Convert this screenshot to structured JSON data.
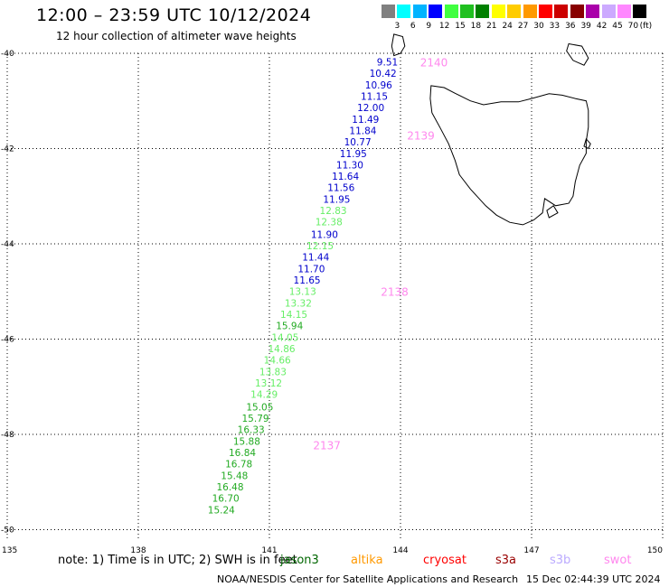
{
  "header": {
    "title": "12:00 – 23:59 UTC 10/12/2024",
    "subtitle": "12 hour collection of altimeter wave heights"
  },
  "legend": {
    "unit": "(ft)",
    "colors": [
      "#808080",
      "#00ffff",
      "#00b4ff",
      "#0000ff",
      "#40ff40",
      "#20c020",
      "#008000",
      "#ffff00",
      "#ffcc00",
      "#ff9900",
      "#ff0000",
      "#cc0000",
      "#880000",
      "#aa00aa",
      "#ccaaff",
      "#ff88ff",
      "#000000"
    ],
    "labels": [
      "3",
      "6",
      "9",
      "12",
      "15",
      "18",
      "21",
      "24",
      "27",
      "30",
      "33",
      "36",
      "39",
      "42",
      "45",
      "70"
    ]
  },
  "axes": {
    "lat_labels": [
      "-40",
      "-42",
      "-44",
      "-46",
      "-48",
      "-50"
    ],
    "lon_labels": [
      "135",
      "138",
      "141",
      "144",
      "147",
      "150"
    ],
    "lat_values": [
      -40,
      -42,
      -44,
      -46,
      -48,
      -50
    ],
    "lon_values": [
      135,
      138,
      141,
      144,
      147,
      150
    ],
    "lat_range": [
      -50.2,
      -40
    ],
    "lon_range": [
      135,
      150
    ]
  },
  "track": {
    "points": [
      {
        "lat": -40.18,
        "lon": 143.7,
        "value": "9.51",
        "color": "#0000cc"
      },
      {
        "lat": -40.42,
        "lon": 143.6,
        "value": "10.42",
        "color": "#0000cc"
      },
      {
        "lat": -40.66,
        "lon": 143.5,
        "value": "10.96",
        "color": "#0000cc"
      },
      {
        "lat": -40.9,
        "lon": 143.4,
        "value": "11.15",
        "color": "#0000cc"
      },
      {
        "lat": -41.14,
        "lon": 143.32,
        "value": "12.00",
        "color": "#0000cc"
      },
      {
        "lat": -41.38,
        "lon": 143.2,
        "value": "11.49",
        "color": "#0000cc"
      },
      {
        "lat": -41.62,
        "lon": 143.14,
        "value": "11.84",
        "color": "#0000cc"
      },
      {
        "lat": -41.86,
        "lon": 143.02,
        "value": "10.77",
        "color": "#0000cc"
      },
      {
        "lat": -42.1,
        "lon": 142.92,
        "value": "11.95",
        "color": "#0000cc"
      },
      {
        "lat": -42.34,
        "lon": 142.84,
        "value": "11.30",
        "color": "#0000cc"
      },
      {
        "lat": -42.58,
        "lon": 142.74,
        "value": "11.64",
        "color": "#0000cc"
      },
      {
        "lat": -42.82,
        "lon": 142.64,
        "value": "11.56",
        "color": "#0000cc"
      },
      {
        "lat": -43.06,
        "lon": 142.54,
        "value": "11.95",
        "color": "#0000cc"
      },
      {
        "lat": -43.3,
        "lon": 142.46,
        "value": "12.83",
        "color": "#66ee66"
      },
      {
        "lat": -43.54,
        "lon": 142.36,
        "value": "12.38",
        "color": "#66ee66"
      },
      {
        "lat": -43.8,
        "lon": 142.26,
        "value": "11.90",
        "color": "#0000cc"
      },
      {
        "lat": -44.04,
        "lon": 142.16,
        "value": "12.15",
        "color": "#66ee66"
      },
      {
        "lat": -44.28,
        "lon": 142.06,
        "value": "11.44",
        "color": "#0000cc"
      },
      {
        "lat": -44.52,
        "lon": 141.96,
        "value": "11.70",
        "color": "#0000cc"
      },
      {
        "lat": -44.76,
        "lon": 141.86,
        "value": "11.65",
        "color": "#0000cc"
      },
      {
        "lat": -45.0,
        "lon": 141.76,
        "value": "13.13",
        "color": "#66ee66"
      },
      {
        "lat": -45.24,
        "lon": 141.66,
        "value": "13.32",
        "color": "#66ee66"
      },
      {
        "lat": -45.48,
        "lon": 141.56,
        "value": "14.15",
        "color": "#66ee66"
      },
      {
        "lat": -45.72,
        "lon": 141.46,
        "value": "15.94",
        "color": "#22aa22"
      },
      {
        "lat": -45.96,
        "lon": 141.36,
        "value": "14.05",
        "color": "#66ee66"
      },
      {
        "lat": -46.2,
        "lon": 141.28,
        "value": "14.86",
        "color": "#66ee66"
      },
      {
        "lat": -46.44,
        "lon": 141.18,
        "value": "14.66",
        "color": "#66ee66"
      },
      {
        "lat": -46.68,
        "lon": 141.08,
        "value": "13.83",
        "color": "#66ee66"
      },
      {
        "lat": -46.92,
        "lon": 140.98,
        "value": "13.12",
        "color": "#66ee66"
      },
      {
        "lat": -47.16,
        "lon": 140.88,
        "value": "14.29",
        "color": "#66ee66"
      },
      {
        "lat": -47.42,
        "lon": 140.78,
        "value": "15.05",
        "color": "#22aa22"
      },
      {
        "lat": -47.66,
        "lon": 140.68,
        "value": "15.79",
        "color": "#22aa22"
      },
      {
        "lat": -47.9,
        "lon": 140.58,
        "value": "16.33",
        "color": "#22aa22"
      },
      {
        "lat": -48.14,
        "lon": 140.48,
        "value": "15.88",
        "color": "#22aa22"
      },
      {
        "lat": -48.38,
        "lon": 140.38,
        "value": "16.84",
        "color": "#22aa22"
      },
      {
        "lat": -48.62,
        "lon": 140.3,
        "value": "16.78",
        "color": "#22aa22"
      },
      {
        "lat": -48.86,
        "lon": 140.2,
        "value": "15.48",
        "color": "#22aa22"
      },
      {
        "lat": -49.1,
        "lon": 140.1,
        "value": "16.48",
        "color": "#22aa22"
      },
      {
        "lat": -49.34,
        "lon": 140.0,
        "value": "16.70",
        "color": "#22aa22"
      },
      {
        "lat": -49.58,
        "lon": 139.9,
        "value": "15.24",
        "color": "#22aa22"
      }
    ],
    "times": [
      {
        "lat": -40.18,
        "lon": 144.45,
        "label": "2140"
      },
      {
        "lat": -41.72,
        "lon": 144.15,
        "label": "2139"
      },
      {
        "lat": -45.0,
        "lon": 143.55,
        "label": "2138"
      },
      {
        "lat": -48.22,
        "lon": 142.0,
        "label": "2137"
      }
    ],
    "time_color": "#ff88ee"
  },
  "tasmania": [
    [
      -40.68,
      144.7
    ],
    [
      -40.72,
      145.0
    ],
    [
      -40.84,
      145.25
    ],
    [
      -41.0,
      145.6
    ],
    [
      -41.08,
      145.9
    ],
    [
      -41.02,
      146.3
    ],
    [
      -41.02,
      146.7
    ],
    [
      -40.95,
      147.0
    ],
    [
      -40.85,
      147.4
    ],
    [
      -40.88,
      147.7
    ],
    [
      -40.95,
      148.0
    ],
    [
      -41.0,
      148.25
    ],
    [
      -41.2,
      148.3
    ],
    [
      -41.55,
      148.3
    ],
    [
      -41.85,
      148.25
    ],
    [
      -42.1,
      148.25
    ],
    [
      -42.35,
      148.1
    ],
    [
      -42.7,
      148.0
    ],
    [
      -43.0,
      147.95
    ],
    [
      -43.15,
      147.85
    ],
    [
      -43.2,
      147.55
    ],
    [
      -43.05,
      147.3
    ],
    [
      -43.35,
      147.25
    ],
    [
      -43.5,
      147.05
    ],
    [
      -43.6,
      146.8
    ],
    [
      -43.55,
      146.5
    ],
    [
      -43.4,
      146.2
    ],
    [
      -43.2,
      145.95
    ],
    [
      -42.85,
      145.6
    ],
    [
      -42.55,
      145.35
    ],
    [
      -42.25,
      145.25
    ],
    [
      -41.9,
      145.1
    ],
    [
      -41.55,
      144.9
    ],
    [
      -41.25,
      144.72
    ],
    [
      -40.95,
      144.68
    ],
    [
      -40.68,
      144.7
    ]
  ],
  "islands": [
    [
      [
        -39.6,
        143.85
      ],
      [
        -39.65,
        144.05
      ],
      [
        -39.85,
        144.1
      ],
      [
        -40.0,
        144.0
      ],
      [
        -40.05,
        143.85
      ],
      [
        -39.85,
        143.8
      ],
      [
        -39.6,
        143.85
      ]
    ],
    [
      [
        -39.8,
        147.85
      ],
      [
        -39.85,
        148.15
      ],
      [
        -40.1,
        148.3
      ],
      [
        -40.25,
        148.2
      ],
      [
        -40.15,
        147.95
      ],
      [
        -39.95,
        147.8
      ],
      [
        -39.8,
        147.85
      ]
    ],
    [
      [
        -41.8,
        148.25
      ],
      [
        -41.9,
        148.35
      ],
      [
        -42.0,
        148.3
      ],
      [
        -41.95,
        148.2
      ],
      [
        -41.8,
        148.25
      ]
    ],
    [
      [
        -43.2,
        147.5
      ],
      [
        -43.35,
        147.6
      ],
      [
        -43.45,
        147.4
      ],
      [
        -43.3,
        147.35
      ],
      [
        -43.2,
        147.5
      ]
    ]
  ],
  "footer": {
    "note": "note:  1) Time is in UTC; 2) SWH is in feet",
    "satellites": [
      {
        "name": "jason3",
        "color": "#006600"
      },
      {
        "name": "altika",
        "color": "#ff9900"
      },
      {
        "name": "cryosat",
        "color": "#ff0000"
      },
      {
        "name": "s3a",
        "color": "#990000"
      },
      {
        "name": "s3b",
        "color": "#bbaaff"
      },
      {
        "name": "swot",
        "color": "#ff88ee"
      }
    ],
    "credit": "NOAA/NESDIS Center for Satellite Applications and Research",
    "timestamp": "15 Dec 02:44:39 UTC 2024"
  }
}
